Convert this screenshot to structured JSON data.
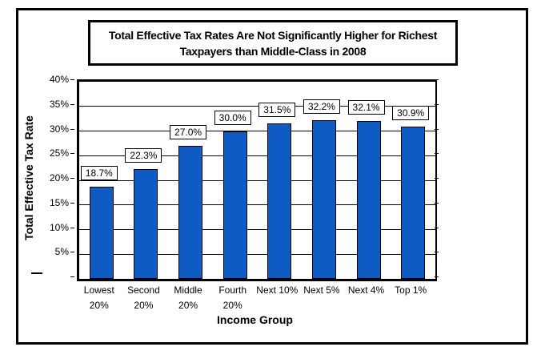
{
  "chart_data": {
    "type": "bar",
    "title": "Total Effective Tax Rates Are Not Significantly Higher for Richest Taxpayers than Middle-Class in 2008",
    "title_line1": "Total Effective Tax Rates Are Not Significantly Higher for Richest",
    "title_line2": "Taxpayers than Middle-Class in 2008",
    "xlabel": "Income Group",
    "ylabel": "Total Effective Tax Rate",
    "categories": [
      "Lowest 20%",
      "Second 20%",
      "Middle 20%",
      "Fourth 20%",
      "Next 10%",
      "Next 5%",
      "Next 4%",
      "Top 1%"
    ],
    "category_lines": [
      [
        "Lowest",
        "20%"
      ],
      [
        "Second",
        "20%"
      ],
      [
        "Middle",
        "20%"
      ],
      [
        "Fourth",
        "20%"
      ],
      [
        "Next 10%"
      ],
      [
        "Next 5%"
      ],
      [
        "Next 4%"
      ],
      [
        "Top 1%"
      ]
    ],
    "values": [
      18.7,
      22.3,
      27.0,
      30.0,
      31.5,
      32.2,
      32.1,
      30.9
    ],
    "labels": [
      "18.7%",
      "22.3%",
      "27.0%",
      "30.0%",
      "31.5%",
      "32.2%",
      "32.1%",
      "30.9%"
    ],
    "ylim": [
      0,
      40
    ],
    "ytick_step": 5,
    "ytick_labels": [
      "40%",
      "35%",
      "30%",
      "25%",
      "20%",
      "15%",
      "10%",
      "5%"
    ],
    "zero_tick_label": "—",
    "grid": true,
    "legend": "none",
    "bar_color": "#0e5cc3",
    "bar_border_color": "#000000",
    "axis_color": "#000000",
    "background_color": "#ffffff"
  }
}
